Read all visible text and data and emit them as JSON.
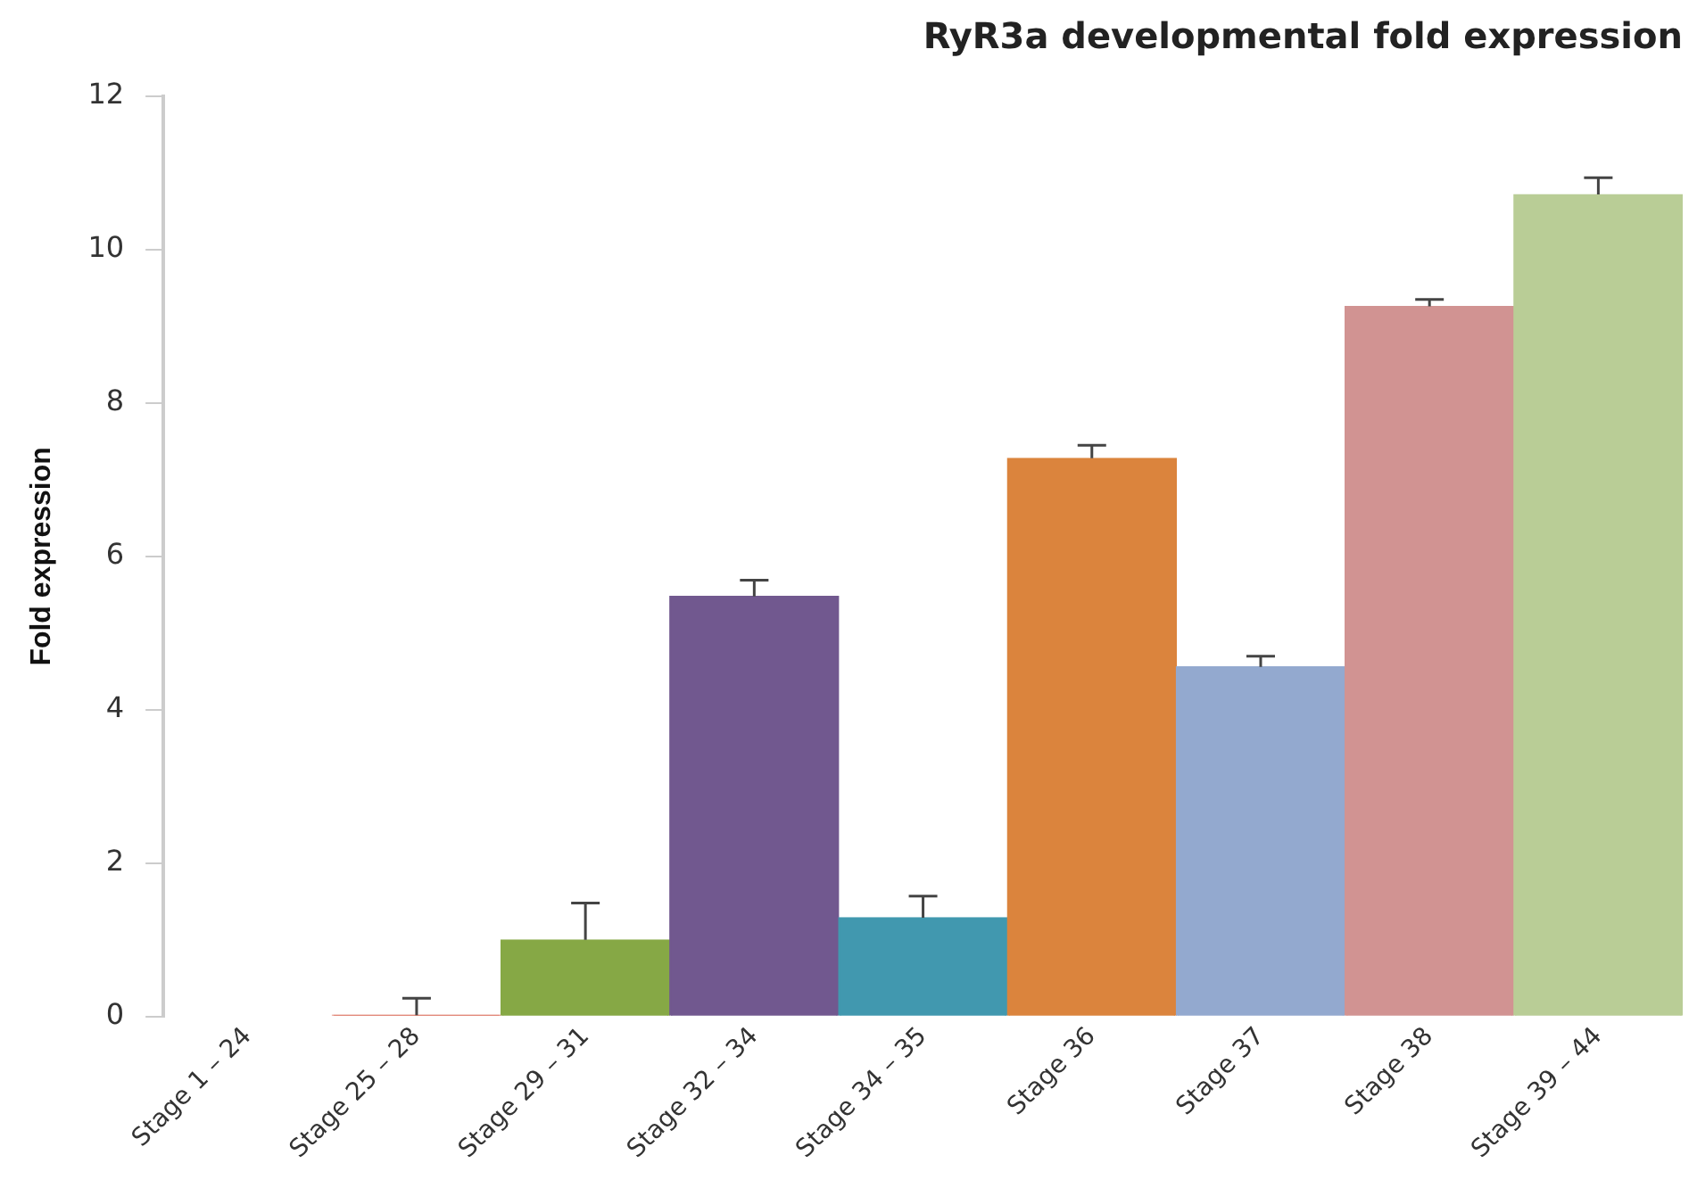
{
  "chart_data": {
    "type": "bar",
    "title": "RyR3a developmental fold expression",
    "ylabel": "Fold expression",
    "categories": [
      "Stage 1 – 24",
      "Stage 25 – 28",
      "Stage 29 – 31",
      "Stage 32 – 34",
      "Stage 34 – 35",
      "Stage 36",
      "Stage 37",
      "Stage 38",
      "Stage 39 – 44"
    ],
    "values": [
      null,
      0.02,
      1.0,
      5.48,
      1.29,
      7.28,
      4.56,
      9.26,
      10.72
    ],
    "colors": [
      "#e08070",
      "#e08070",
      "#86a845",
      "#71588f",
      "#4198af",
      "#db843d",
      "#93a9cf",
      "#d19392",
      "#b9cd96"
    ],
    "errors": [
      null,
      [
        0.02,
        0.24
      ],
      [
        1.0,
        1.48
      ],
      [
        5.48,
        5.69
      ],
      [
        1.29,
        1.57
      ],
      [
        7.28,
        7.45
      ],
      [
        4.56,
        4.7
      ],
      [
        9.26,
        9.35
      ],
      [
        10.72,
        10.94
      ]
    ],
    "ylim": [
      0,
      12
    ],
    "yticks": [
      0,
      2,
      4,
      6,
      8,
      10,
      12
    ],
    "grid": false,
    "legend": false
  }
}
